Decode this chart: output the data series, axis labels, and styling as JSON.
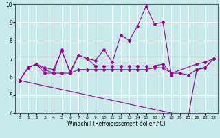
{
  "xlabel": "Windchill (Refroidissement éolien,°C)",
  "bg_color": "#c8eaea",
  "line_color": "#990099",
  "grid_color": "#ffffff",
  "xmin": -0.5,
  "xmax": 23.5,
  "ymin": 4,
  "ymax": 10,
  "line1_x": [
    0,
    1,
    2,
    3,
    4,
    5,
    6,
    7,
    8,
    9,
    10,
    11,
    12,
    13,
    14,
    15,
    16,
    17,
    18
  ],
  "line1_y": [
    5.8,
    6.5,
    6.7,
    6.2,
    6.2,
    7.5,
    6.2,
    7.2,
    7.0,
    6.9,
    7.5,
    6.8,
    8.3,
    8.0,
    8.8,
    9.9,
    8.9,
    9.0,
    6.1
  ],
  "line2_x": [
    0,
    1,
    2,
    3,
    4,
    5,
    6,
    7,
    8,
    9,
    10,
    11,
    12,
    13,
    14,
    15,
    16,
    17,
    18,
    21,
    22,
    23
  ],
  "line2_y": [
    5.8,
    6.5,
    6.7,
    6.5,
    6.4,
    7.4,
    6.3,
    7.2,
    7.0,
    6.6,
    6.6,
    6.6,
    6.6,
    6.6,
    6.6,
    6.6,
    6.6,
    6.7,
    6.2,
    6.7,
    6.8,
    7.0
  ],
  "line3_x": [
    0,
    1,
    2,
    3,
    4,
    5,
    6,
    7,
    8,
    9,
    10,
    11,
    12,
    13,
    14,
    15,
    16,
    17,
    18,
    19,
    20,
    21,
    22,
    23
  ],
  "line3_y": [
    5.8,
    6.5,
    6.7,
    6.4,
    6.2,
    6.2,
    6.2,
    6.4,
    6.4,
    6.4,
    6.4,
    6.4,
    6.4,
    6.4,
    6.4,
    6.4,
    6.5,
    6.5,
    6.2,
    6.2,
    6.1,
    6.4,
    6.5,
    7.0
  ],
  "line4_x": [
    0,
    20,
    21,
    22,
    23
  ],
  "line4_y": [
    5.8,
    3.8,
    6.4,
    6.5,
    7.0
  ]
}
